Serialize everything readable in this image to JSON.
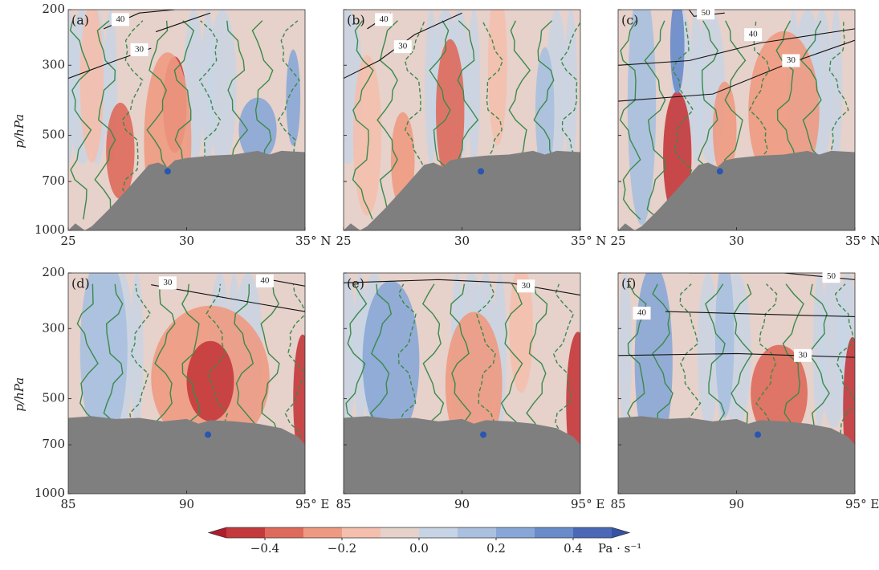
{
  "chart_data": [
    {
      "type": "contour",
      "label": "(a)",
      "y_label": "p/hPa",
      "xlim": [
        25,
        35
      ],
      "xticks": [
        25,
        30,
        {
          "value": 35,
          "label": "35° N"
        }
      ],
      "ylim": [
        1000,
        200
      ],
      "yticks": [
        200,
        300,
        500,
        700,
        1000
      ],
      "y_scale": "log",
      "contour_labels": [
        40,
        30
      ]
    },
    {
      "type": "contour",
      "label": "(b)",
      "xlim": [
        25,
        35
      ],
      "xticks": [
        25,
        30,
        {
          "value": 35,
          "label": "35° N"
        }
      ],
      "ylim": [
        1000,
        200
      ],
      "y_scale": "log",
      "contour_labels": [
        40,
        30
      ]
    },
    {
      "type": "contour",
      "label": "(c)",
      "xlim": [
        25,
        35
      ],
      "xticks": [
        25,
        30,
        {
          "value": 35,
          "label": "35° N"
        }
      ],
      "ylim": [
        1000,
        200
      ],
      "y_scale": "log",
      "contour_labels": [
        50,
        40,
        30
      ]
    },
    {
      "type": "contour",
      "label": "(d)",
      "y_label": "p/hPa",
      "xlim": [
        85,
        95
      ],
      "xticks": [
        85,
        90,
        {
          "value": 95,
          "label": "95° E"
        }
      ],
      "ylim": [
        1000,
        200
      ],
      "yticks": [
        200,
        300,
        500,
        700,
        1000
      ],
      "y_scale": "log",
      "contour_labels": [
        30,
        40
      ]
    },
    {
      "type": "contour",
      "label": "(e)",
      "xlim": [
        85,
        95
      ],
      "xticks": [
        85,
        90,
        {
          "value": 95,
          "label": "95° E"
        }
      ],
      "ylim": [
        1000,
        200
      ],
      "y_scale": "log",
      "contour_labels": [
        30
      ]
    },
    {
      "type": "contour",
      "label": "(f)",
      "xlim": [
        85,
        95
      ],
      "xticks": [
        85,
        90,
        {
          "value": 95,
          "label": "95° E"
        }
      ],
      "ylim": [
        1000,
        200
      ],
      "y_scale": "log",
      "contour_labels": [
        50,
        40,
        30
      ]
    }
  ],
  "colorbar": {
    "label": "Pa · s⁻¹",
    "lim": [
      -0.5,
      0.5
    ],
    "ticks": [
      {
        "value": -0.4,
        "label": "−0.4"
      },
      {
        "value": -0.2,
        "label": "−0.2"
      },
      0.0,
      0.2,
      0.4
    ],
    "colors": [
      "#c4393c",
      "#de6a5b",
      "#ee9a82",
      "#f4bfad",
      "#e6d1cb",
      "#c7d4e5",
      "#a9c0df",
      "#89a7d6",
      "#6a8bca",
      "#4a68b6"
    ],
    "under_color": "#b01c2c",
    "over_color": "#3552a5"
  }
}
